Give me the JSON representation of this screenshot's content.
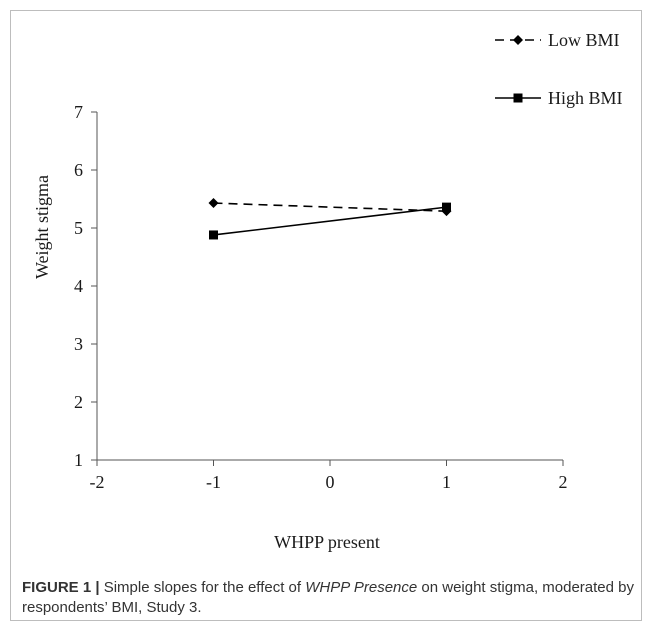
{
  "chart_data": {
    "type": "line",
    "title": "",
    "xlabel": "WHPP present",
    "ylabel": "Weight stigma",
    "xlim": [
      -2,
      2
    ],
    "ylim": [
      1,
      7
    ],
    "xticks": [
      -2,
      -1,
      0,
      1,
      2
    ],
    "yticks": [
      1,
      2,
      3,
      4,
      5,
      6,
      7
    ],
    "grid": false,
    "legend_position": "top-right",
    "series": [
      {
        "name": "Low BMI",
        "style": "dashed",
        "marker": "diamond",
        "color": "#000000",
        "x": [
          -1,
          1
        ],
        "y": [
          5.43,
          5.29
        ]
      },
      {
        "name": "High BMI",
        "style": "solid",
        "marker": "square",
        "color": "#000000",
        "x": [
          -1,
          1
        ],
        "y": [
          4.88,
          5.36
        ]
      }
    ]
  },
  "caption": {
    "label": "FIGURE 1 |",
    "part1": "Simple slopes for the effect of",
    "italic": "WHPP Presence",
    "part2": "on weight stigma, moderated by respondents’ BMI, Study 3."
  }
}
